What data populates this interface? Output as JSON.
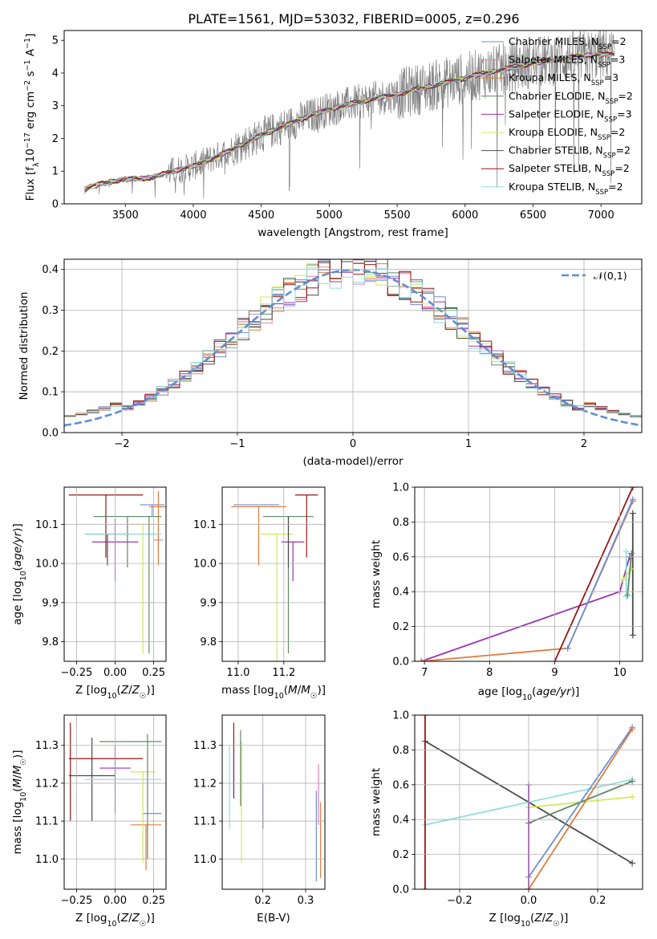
{
  "figure_title": "PLATE=1561, MJD=53032, FIBERID=0005, z=0.296",
  "colors": {
    "Chabrier MILES": "#6a8fd8",
    "Salpeter MILES": "#e37fb4",
    "Kroupa MILES": "#e07b39",
    "Chabrier ELODIE": "#5e8a64",
    "Salpeter ELODIE": "#9b30b5",
    "Kroupa ELODIE": "#d4e85a",
    "Chabrier STELIB": "#4a4a4a",
    "Salpeter STELIB": "#9a1515",
    "Kroupa STELIB": "#8fdde0",
    "data": "#808080",
    "gaussian": "#5b8fd6"
  },
  "chart_data": [
    {
      "id": "spectrum",
      "type": "line",
      "xlabel": "wavelength [Angstrom, rest frame]",
      "ylabel": "Flux [f_λ 10^-17 erg cm^-2 s^-1 A^-1]",
      "xlim": [
        3050,
        7300
      ],
      "ylim": [
        0,
        5.3
      ],
      "xticks": [
        3500,
        4000,
        4500,
        5000,
        5500,
        6000,
        6500,
        7000
      ],
      "yticks": [
        0,
        1,
        2,
        3,
        4,
        5
      ],
      "grid": false,
      "legend_position": "upper-right",
      "legend": [
        {
          "name": "Chabrier MILES",
          "nssp": "2"
        },
        {
          "name": "Salpeter MILES",
          "nssp": "3"
        },
        {
          "name": "Kroupa MILES",
          "nssp": "3"
        },
        {
          "name": "Chabrier ELODIE",
          "nssp": "2"
        },
        {
          "name": "Salpeter ELODIE",
          "nssp": "3"
        },
        {
          "name": "Kroupa ELODIE",
          "nssp": "2"
        },
        {
          "name": "Chabrier STELIB",
          "nssp": "2"
        },
        {
          "name": "Salpeter STELIB",
          "nssp": "2"
        },
        {
          "name": "Kroupa STELIB",
          "nssp": "2"
        }
      ],
      "continuum": {
        "x": [
          3200,
          3300,
          3500,
          3700,
          3800,
          4000,
          4200,
          4500,
          4800,
          5000,
          5200,
          5500,
          5700,
          6000,
          6200,
          6500,
          6800,
          7100
        ],
        "y": [
          0.45,
          0.6,
          0.75,
          0.8,
          0.95,
          1.15,
          1.5,
          2.1,
          2.6,
          2.9,
          3.1,
          3.35,
          3.55,
          3.85,
          4.05,
          4.3,
          4.5,
          4.6
        ]
      },
      "x_range_data": [
        3200,
        7100
      ]
    },
    {
      "id": "residual_histogram",
      "type": "histogram",
      "xlabel": "(data-model)/error",
      "ylabel": "Normed distribution",
      "xlim": [
        -2.5,
        2.5
      ],
      "ylim": [
        0,
        0.425
      ],
      "xticks": [
        -2,
        -1,
        0,
        1,
        2
      ],
      "yticks": [
        0.0,
        0.1,
        0.2,
        0.3,
        0.4
      ],
      "grid": true,
      "legend_position": "upper-right",
      "legend": [
        "𝒩(0,1)"
      ],
      "bin_width": 0.1,
      "note": "stepped histograms for 9 models scattered around a unit normal"
    },
    {
      "id": "age_vs_Z",
      "type": "errorbar",
      "xlabel": "Z [log10(Z/Z☉)]",
      "ylabel": "age [log10(age/yr)]",
      "xlim": [
        -0.33,
        0.33
      ],
      "ylim": [
        9.75,
        10.195
      ],
      "xticks": [
        -0.25,
        0.0,
        0.25
      ],
      "yticks": [
        9.8,
        9.9,
        10.0,
        10.1
      ],
      "grid": true,
      "points": [
        {
          "model": "Chabrier MILES",
          "x": 0.24,
          "xerr": 0.08,
          "y": 10.15,
          "yerr": [
            0.03,
            0.0
          ]
        },
        {
          "model": "Salpeter MILES",
          "x": 0.28,
          "xerr": 0.03,
          "y": 10.06,
          "yerr": [
            0.03,
            0.03
          ]
        },
        {
          "model": "Kroupa MILES",
          "x": 0.28,
          "xerr": 0.06,
          "y": 10.145,
          "yerr": [
            0.15,
            0.04
          ]
        },
        {
          "model": "Chabrier ELODIE",
          "x": 0.08,
          "xerr": 0.22,
          "y": 10.12,
          "yerr": [
            0.13,
            0.0
          ]
        },
        {
          "model": "Salpeter ELODIE",
          "x": 0.0,
          "xerr": 0.15,
          "y": 10.055,
          "yerr": [
            0.1,
            0.06
          ]
        },
        {
          "model": "Kroupa ELODIE",
          "x": 0.18,
          "xerr": 0.08,
          "y": 10.1,
          "yerr": [
            0.33,
            0.0
          ]
        },
        {
          "model": "Chabrier STELIB",
          "x": -0.05,
          "xerr": 0.14,
          "y": 10.075,
          "yerr": [
            0.08,
            0.0
          ]
        },
        {
          "model": "Salpeter STELIB",
          "x": -0.06,
          "xerr": 0.24,
          "y": 10.175,
          "yerr": [
            0.16,
            0.0
          ]
        },
        {
          "model": "Kroupa STELIB",
          "x": 0.05,
          "xerr": 0.25,
          "y": 10.075,
          "yerr": [
            0.0,
            0.0
          ]
        },
        {
          "model": "Chabrier ELODIE",
          "x": 0.22,
          "xerr": 0.0,
          "y": 10.12,
          "yerr": [
            0.35,
            0.0
          ]
        }
      ]
    },
    {
      "id": "age_vs_mass",
      "type": "errorbar",
      "xlabel": "mass [log10(M/M☉)]",
      "ylabel": "",
      "xlim": [
        10.93,
        11.38
      ],
      "ylim": [
        9.75,
        10.195
      ],
      "xticks": [
        11.0,
        11.2
      ],
      "yticks": [
        9.8,
        9.9,
        10.0,
        10.1
      ],
      "grid": true,
      "points": [
        {
          "model": "Chabrier MILES",
          "x": 11.08,
          "xerr": 0.1,
          "y": 10.15,
          "yerr": [
            0.0,
            0.0
          ]
        },
        {
          "model": "Kroupa MILES",
          "x": 11.09,
          "xerr": 0.12,
          "y": 10.145,
          "yerr": [
            0.15,
            0.0
          ]
        },
        {
          "model": "Chabrier ELODIE",
          "x": 11.22,
          "xerr": 0.11,
          "y": 10.12,
          "yerr": [
            0.35,
            0.0
          ]
        },
        {
          "model": "Salpeter ELODIE",
          "x": 11.24,
          "xerr": 0.05,
          "y": 10.055,
          "yerr": [
            0.1,
            0.0
          ]
        },
        {
          "model": "Kroupa ELODIE",
          "x": 11.17,
          "xerr": 0.07,
          "y": 10.075,
          "yerr": [
            0.33,
            0.0
          ]
        },
        {
          "model": "Chabrier STELIB",
          "x": 11.22,
          "xerr": 0.0,
          "y": 10.12,
          "yerr": [
            0.13,
            0.0
          ]
        },
        {
          "model": "Salpeter STELIB",
          "x": 11.3,
          "xerr": 0.05,
          "y": 10.175,
          "yerr": [
            0.16,
            0.0
          ]
        },
        {
          "model": "Kroupa STELIB",
          "x": 11.2,
          "xerr": 0.0,
          "y": 10.075,
          "yerr": [
            0.0,
            0.0
          ]
        }
      ]
    },
    {
      "id": "mass_weight_vs_age",
      "type": "line",
      "xlabel": "age [log10(age/yr)]",
      "ylabel": "mass weight",
      "xlim": [
        6.85,
        10.35
      ],
      "ylim": [
        0,
        1.0
      ],
      "xticks": [
        7,
        8,
        9,
        10
      ],
      "yticks": [
        0.0,
        0.2,
        0.4,
        0.6,
        0.8,
        1.0
      ],
      "grid": true,
      "series": [
        {
          "model": "Salpeter ELODIE",
          "x": [
            6.95,
            10.0,
            10.15
          ],
          "y": [
            0.0,
            0.4,
            0.6
          ]
        },
        {
          "model": "Kroupa MILES",
          "x": [
            6.95,
            9.2,
            10.2
          ],
          "y": [
            0.0,
            0.075,
            0.92
          ]
        },
        {
          "model": "Chabrier MILES",
          "x": [
            9.2,
            10.2
          ],
          "y": [
            0.075,
            0.93
          ]
        },
        {
          "model": "Salpeter STELIB",
          "x": [
            9.0,
            10.2
          ],
          "y": [
            0.0,
            1.0
          ]
        },
        {
          "model": "Chabrier STELIB",
          "x": [
            10.2,
            10.2
          ],
          "y": [
            0.15,
            0.85
          ]
        },
        {
          "model": "Kroupa STELIB",
          "x": [
            10.1,
            10.1
          ],
          "y": [
            0.37,
            0.63
          ]
        },
        {
          "model": "Kroupa ELODIE",
          "x": [
            10.05,
            10.18
          ],
          "y": [
            0.47,
            0.53
          ]
        },
        {
          "model": "Chabrier ELODIE",
          "x": [
            10.12,
            10.18
          ],
          "y": [
            0.38,
            0.62
          ]
        }
      ]
    },
    {
      "id": "mass_vs_Z",
      "type": "errorbar",
      "xlabel": "Z [log10(Z/Z☉)]",
      "ylabel": "mass [log10(M/M☉)]",
      "xlim": [
        -0.33,
        0.33
      ],
      "ylim": [
        10.92,
        11.38
      ],
      "xticks": [
        -0.25,
        0.0,
        0.25
      ],
      "yticks": [
        11.0,
        11.1,
        11.2,
        11.3
      ],
      "grid": true,
      "points": [
        {
          "model": "Chabrier MILES",
          "x": 0.24,
          "xerr": 0.06,
          "y": 11.12,
          "yerr": [
            0.0,
            0.0
          ]
        },
        {
          "model": "Kroupa MILES",
          "x": 0.2,
          "xerr": 0.1,
          "y": 11.09,
          "yerr": [
            0.12,
            0.0
          ]
        },
        {
          "model": "Chabrier ELODIE",
          "x": 0.1,
          "xerr": 0.2,
          "y": 11.31,
          "yerr": [
            0.0,
            0.0
          ]
        },
        {
          "model": "Salpeter ELODIE",
          "x": 0.0,
          "xerr": 0.1,
          "y": 11.24,
          "yerr": [
            0.12,
            0.06
          ]
        },
        {
          "model": "Kroupa ELODIE",
          "x": 0.18,
          "xerr": 0.08,
          "y": 11.23,
          "yerr": [
            0.24,
            0.0
          ]
        },
        {
          "model": "Chabrier STELIB",
          "x": -0.15,
          "xerr": 0.15,
          "y": 11.22,
          "yerr": [
            0.12,
            0.1
          ]
        },
        {
          "model": "Salpeter STELIB",
          "x": -0.06,
          "xerr": 0.24,
          "y": 11.265,
          "yerr": [
            0.0,
            0.0
          ]
        },
        {
          "model": "Kroupa STELIB",
          "x": 0.05,
          "xerr": 0.25,
          "y": 11.21,
          "yerr": [
            0.0,
            0.0
          ]
        },
        {
          "model": "Chabrier ELODIE",
          "x": 0.21,
          "xerr": 0.0,
          "y": 11.22,
          "yerr": [
            0.22,
            0.11
          ]
        },
        {
          "model": "Salpeter STELIB",
          "x": -0.29,
          "xerr": 0.0,
          "y": 11.26,
          "yerr": [
            0.16,
            0.1
          ]
        }
      ]
    },
    {
      "id": "mass_vs_ebv",
      "type": "errorbar",
      "xlabel": "E(B-V)",
      "ylabel": "",
      "xlim": [
        0.105,
        0.345
      ],
      "ylim": [
        10.92,
        11.38
      ],
      "xticks": [
        0.2,
        0.3
      ],
      "yticks": [
        11.0,
        11.1,
        11.2,
        11.3
      ],
      "grid": true,
      "points": [
        {
          "model": "Kroupa STELIB",
          "x": 0.122,
          "y": 11.19,
          "yerr": [
            0.11,
            0.11
          ]
        },
        {
          "model": "Salpeter STELIB",
          "x": 0.132,
          "y": 11.26,
          "yerr": [
            0.1,
            0.1
          ]
        },
        {
          "model": "Kroupa ELODIE",
          "x": 0.15,
          "y": 11.15,
          "yerr": [
            0.16,
            0.16
          ]
        },
        {
          "model": "Chabrier ELODIE",
          "x": 0.148,
          "y": 11.24,
          "yerr": [
            0.1,
            0.1
          ]
        },
        {
          "model": "Salpeter ELODIE",
          "x": 0.2,
          "y": 11.14,
          "yerr": [
            0.06,
            0.06
          ]
        },
        {
          "model": "Chabrier MILES",
          "x": 0.325,
          "y": 11.06,
          "yerr": [
            0.12,
            0.12
          ]
        },
        {
          "model": "Salpeter MILES",
          "x": 0.33,
          "y": 11.17,
          "yerr": [
            0.08,
            0.08
          ]
        },
        {
          "model": "Kroupa MILES",
          "x": 0.335,
          "y": 11.05,
          "yerr": [
            0.1,
            0.1
          ]
        }
      ]
    },
    {
      "id": "mass_weight_vs_Z",
      "type": "line",
      "xlabel": "Z [log10(Z/Z☉)]",
      "ylabel": "mass weight",
      "xlim": [
        -0.33,
        0.33
      ],
      "ylim": [
        0,
        1.0
      ],
      "xticks": [
        -0.2,
        0.0,
        0.2
      ],
      "yticks": [
        0.0,
        0.2,
        0.4,
        0.6,
        0.8,
        1.0
      ],
      "grid": true,
      "series": [
        {
          "model": "Chabrier STELIB",
          "x": [
            -0.3,
            0.3
          ],
          "y": [
            0.85,
            0.15
          ]
        },
        {
          "model": "Kroupa STELIB",
          "x": [
            -0.3,
            0.3
          ],
          "y": [
            0.37,
            0.63
          ]
        },
        {
          "model": "Kroupa ELODIE",
          "x": [
            0.0,
            0.3
          ],
          "y": [
            0.47,
            0.53
          ]
        },
        {
          "model": "Chabrier ELODIE",
          "x": [
            0.0,
            0.3
          ],
          "y": [
            0.38,
            0.62
          ]
        },
        {
          "model": "Chabrier MILES",
          "x": [
            0.0,
            0.3
          ],
          "y": [
            0.07,
            0.93
          ]
        },
        {
          "model": "Kroupa MILES",
          "x": [
            0.0,
            0.3
          ],
          "y": [
            0.0,
            0.92
          ]
        },
        {
          "model": "Salpeter ELODIE",
          "x": [
            0.0,
            0.0
          ],
          "y": [
            0.0,
            0.6
          ]
        },
        {
          "model": "Salpeter STELIB",
          "x": [
            -0.3,
            -0.3
          ],
          "y": [
            0.0,
            1.0
          ]
        }
      ]
    }
  ]
}
